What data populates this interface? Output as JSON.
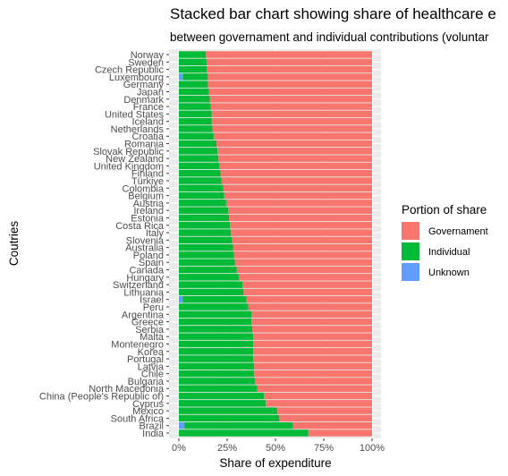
{
  "chart_data": {
    "type": "bar",
    "orientation": "horizontal",
    "stacked": true,
    "title": "Stacked bar chart showing share of healthcare e",
    "subtitle": "between governament and individual contributions (voluntar",
    "xlabel": "Share of expenditure",
    "ylabel": "Coutries",
    "xlim": [
      0,
      1
    ],
    "x_ticks": [
      "0%",
      "25%",
      "50%",
      "75%",
      "100%"
    ],
    "grid": true,
    "legend": {
      "title": "Portion of share",
      "position": "right",
      "entries": [
        {
          "label": "Governament",
          "color": "#F8766D"
        },
        {
          "label": "Individual",
          "color": "#00BA38"
        },
        {
          "label": "Unknown",
          "color": "#619CFF"
        }
      ]
    },
    "categories": [
      "Norway",
      "Sweden",
      "Czech Republic",
      "Luxembourg",
      "Germany",
      "Japan",
      "Denmark",
      "France",
      "United States",
      "Iceland",
      "Netherlands",
      "Croatia",
      "Romania",
      "Slovak Republic",
      "New Zealand",
      "United Kingdom",
      "Finland",
      "Türkiye",
      "Colombia",
      "Belgium",
      "Austria",
      "Ireland",
      "Estonia",
      "Costa Rica",
      "Italy",
      "Slovenia",
      "Australia",
      "Poland",
      "Spain",
      "Canada",
      "Hungary",
      "Switzerland",
      "Lithuania",
      "Israel",
      "Peru",
      "Argentina",
      "Greece",
      "Serbia",
      "Malta",
      "Montenegro",
      "Korea",
      "Portugal",
      "Latvia",
      "Chile",
      "Bulgaria",
      "North Macedonia",
      "China (People's Republic of)",
      "Cyprus",
      "Mexico",
      "South Africa",
      "Brazil",
      "India"
    ],
    "series": [
      {
        "name": "Unknown",
        "values": [
          0,
          0,
          0,
          0.02,
          0,
          0,
          0,
          0,
          0,
          0,
          0,
          0,
          0,
          0,
          0,
          0,
          0,
          0,
          0,
          0,
          0,
          0,
          0,
          0,
          0,
          0,
          0,
          0,
          0,
          0,
          0,
          0,
          0,
          0.02,
          0,
          0,
          0,
          0,
          0,
          0,
          0,
          0,
          0,
          0,
          0,
          0,
          0,
          0,
          0,
          0,
          0.03,
          0
        ]
      },
      {
        "name": "Individual",
        "values": [
          0.14,
          0.145,
          0.145,
          0.13,
          0.15,
          0.155,
          0.16,
          0.165,
          0.17,
          0.17,
          0.175,
          0.18,
          0.195,
          0.2,
          0.205,
          0.21,
          0.215,
          0.22,
          0.23,
          0.235,
          0.245,
          0.255,
          0.26,
          0.265,
          0.27,
          0.275,
          0.28,
          0.285,
          0.29,
          0.3,
          0.31,
          0.33,
          0.335,
          0.33,
          0.36,
          0.375,
          0.375,
          0.38,
          0.385,
          0.385,
          0.385,
          0.385,
          0.39,
          0.39,
          0.395,
          0.405,
          0.44,
          0.45,
          0.51,
          0.52,
          0.56,
          0.67
        ]
      },
      {
        "name": "Governament",
        "values": [
          0.86,
          0.855,
          0.855,
          0.85,
          0.85,
          0.845,
          0.84,
          0.835,
          0.83,
          0.83,
          0.825,
          0.82,
          0.805,
          0.8,
          0.795,
          0.79,
          0.785,
          0.78,
          0.77,
          0.765,
          0.755,
          0.745,
          0.74,
          0.735,
          0.73,
          0.725,
          0.72,
          0.715,
          0.71,
          0.7,
          0.69,
          0.67,
          0.665,
          0.65,
          0.64,
          0.625,
          0.625,
          0.62,
          0.615,
          0.615,
          0.615,
          0.615,
          0.61,
          0.61,
          0.605,
          0.595,
          0.56,
          0.55,
          0.49,
          0.48,
          0.41,
          0.33
        ]
      }
    ]
  }
}
